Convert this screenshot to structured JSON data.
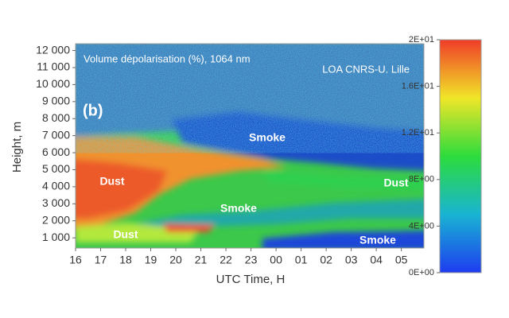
{
  "chart_data": {
    "type": "heatmap",
    "title": "Volume dépolarisation (%), 1064 nm",
    "subtitle": "LOA CNRS-U. Lille",
    "panel_label": "(b)",
    "x_label": "UTC Time, H",
    "y_label": "Height, m",
    "xlim": [
      16,
      29.9
    ],
    "xticks": [
      16,
      17,
      18,
      19,
      20,
      21,
      22,
      23,
      {
        "value": 24,
        "label": "00"
      },
      {
        "value": 25,
        "label": "01"
      },
      {
        "value": 26,
        "label": "02"
      },
      {
        "value": 27,
        "label": "03"
      },
      {
        "value": 28,
        "label": "04"
      },
      {
        "value": 29,
        "label": "05"
      }
    ],
    "ylim": [
      400,
      12400
    ],
    "yticks": [
      {
        "value": 1000,
        "label": "1 000"
      },
      {
        "value": 2000,
        "label": "2 000"
      },
      {
        "value": 3000,
        "label": "3 000"
      },
      {
        "value": 4000,
        "label": "4 000"
      },
      {
        "value": 5000,
        "label": "5 000"
      },
      {
        "value": 6000,
        "label": "6 000"
      },
      {
        "value": 7000,
        "label": "7 000"
      },
      {
        "value": 8000,
        "label": "8 000"
      },
      {
        "value": 9000,
        "label": "9 000"
      },
      {
        "value": 10000,
        "label": "10 000"
      },
      {
        "value": 11000,
        "label": "11 000"
      },
      {
        "value": 12000,
        "label": "12 000"
      }
    ],
    "colorbar": {
      "lim": [
        0,
        20
      ],
      "colors": [
        "#1e3cf0",
        "#19b4d2",
        "#2ddc3c",
        "#f0e628",
        "#f03c28"
      ],
      "ticks": [
        {
          "value": 0,
          "label": "0E+00"
        },
        {
          "value": 4,
          "label": "4E+00"
        },
        {
          "value": 8,
          "label": "8E+00"
        },
        {
          "value": 12,
          "label": "1.2E+01"
        },
        {
          "value": 16,
          "label": "1.6E+01"
        },
        {
          "value": 20,
          "label": "2E+01"
        }
      ]
    },
    "annotations": [
      "Smoke",
      "Dust",
      "Dust",
      "Smoke",
      "Dust",
      "Smoke"
    ]
  }
}
